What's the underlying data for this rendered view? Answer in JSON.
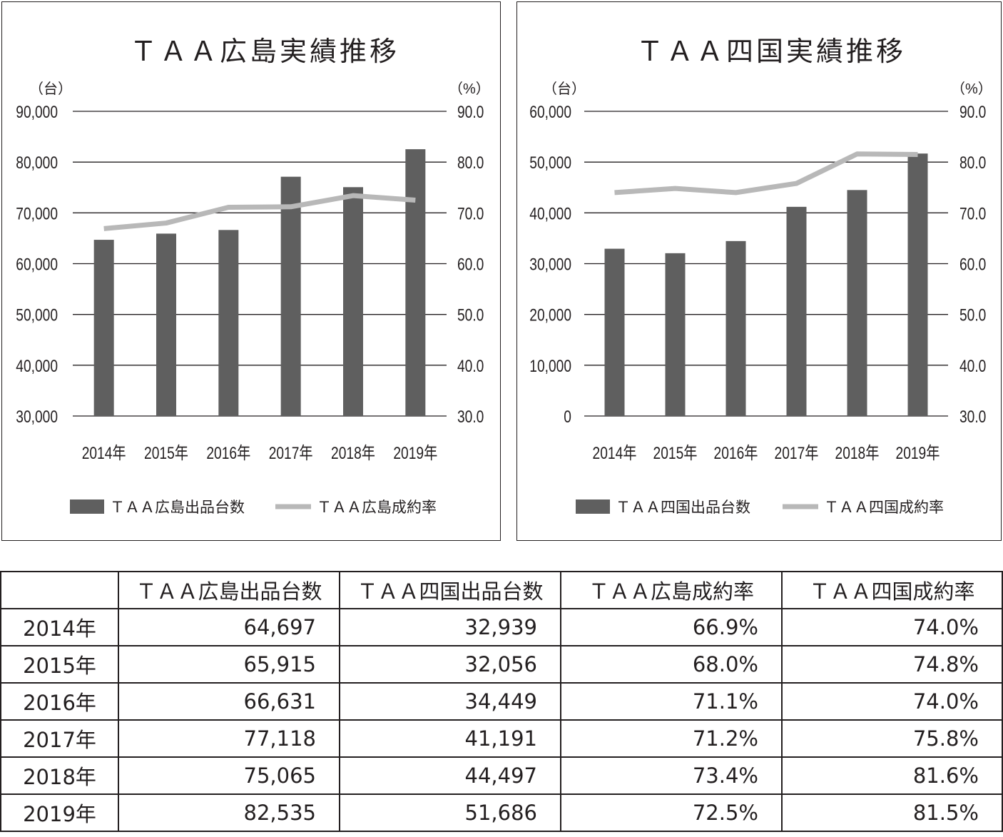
{
  "chart_data": [
    {
      "type": "bar+line",
      "title": "ＴＡＡ広島実績推移",
      "left_unit": "（台）",
      "right_unit": "（%）",
      "categories": [
        "2014年",
        "2015年",
        "2016年",
        "2017年",
        "2018年",
        "2019年"
      ],
      "ylim_left": [
        30000,
        90000
      ],
      "ylim_right": [
        30,
        90
      ],
      "left_ticks": [
        "30,000",
        "40,000",
        "50,000",
        "60,000",
        "70,000",
        "80,000",
        "90,000"
      ],
      "right_ticks": [
        "30.0",
        "40.0",
        "50.0",
        "60.0",
        "70.0",
        "80.0",
        "90.0"
      ],
      "bar_series": {
        "name": "ＴＡＡ広島出品台数",
        "values": [
          64697,
          65915,
          66631,
          77118,
          75065,
          82535
        ],
        "color": "#5f5f5f"
      },
      "line_series": {
        "name": "ＴＡＡ広島成約率",
        "values": [
          66.9,
          68.0,
          71.1,
          71.2,
          73.4,
          72.5
        ],
        "color": "#b8b8b8"
      },
      "legend": "bottom",
      "grid": true
    },
    {
      "type": "bar+line",
      "title": "ＴＡＡ四国実績推移",
      "left_unit": "（台）",
      "right_unit": "（%）",
      "categories": [
        "2014年",
        "2015年",
        "2016年",
        "2017年",
        "2018年",
        "2019年"
      ],
      "ylim_left": [
        0,
        60000
      ],
      "ylim_right": [
        30,
        90
      ],
      "left_ticks": [
        "0",
        "10,000",
        "20,000",
        "30,000",
        "40,000",
        "50,000",
        "60,000"
      ],
      "right_ticks": [
        "30.0",
        "40.0",
        "50.0",
        "60.0",
        "70.0",
        "80.0",
        "90.0"
      ],
      "bar_series": {
        "name": "ＴＡＡ四国出品台数",
        "values": [
          32939,
          32056,
          34449,
          41191,
          44497,
          51686
        ],
        "color": "#5f5f5f"
      },
      "line_series": {
        "name": "ＴＡＡ四国成約率",
        "values": [
          74.0,
          74.8,
          74.0,
          75.8,
          81.6,
          81.5
        ],
        "color": "#b8b8b8"
      },
      "legend": "bottom",
      "grid": true
    }
  ],
  "table": {
    "headers": [
      "",
      "ＴＡＡ広島出品台数",
      "ＴＡＡ四国出品台数",
      "ＴＡＡ広島成約率",
      "ＴＡＡ四国成約率"
    ],
    "rows": [
      [
        "2014年",
        "64,697",
        "32,939",
        "66.9%",
        "74.0%"
      ],
      [
        "2015年",
        "65,915",
        "32,056",
        "68.0%",
        "74.8%"
      ],
      [
        "2016年",
        "66,631",
        "34,449",
        "71.1%",
        "74.0%"
      ],
      [
        "2017年",
        "77,118",
        "41,191",
        "71.2%",
        "75.8%"
      ],
      [
        "2018年",
        "75,065",
        "44,497",
        "73.4%",
        "81.6%"
      ],
      [
        "2019年",
        "82,535",
        "51,686",
        "72.5%",
        "81.5%"
      ]
    ]
  }
}
